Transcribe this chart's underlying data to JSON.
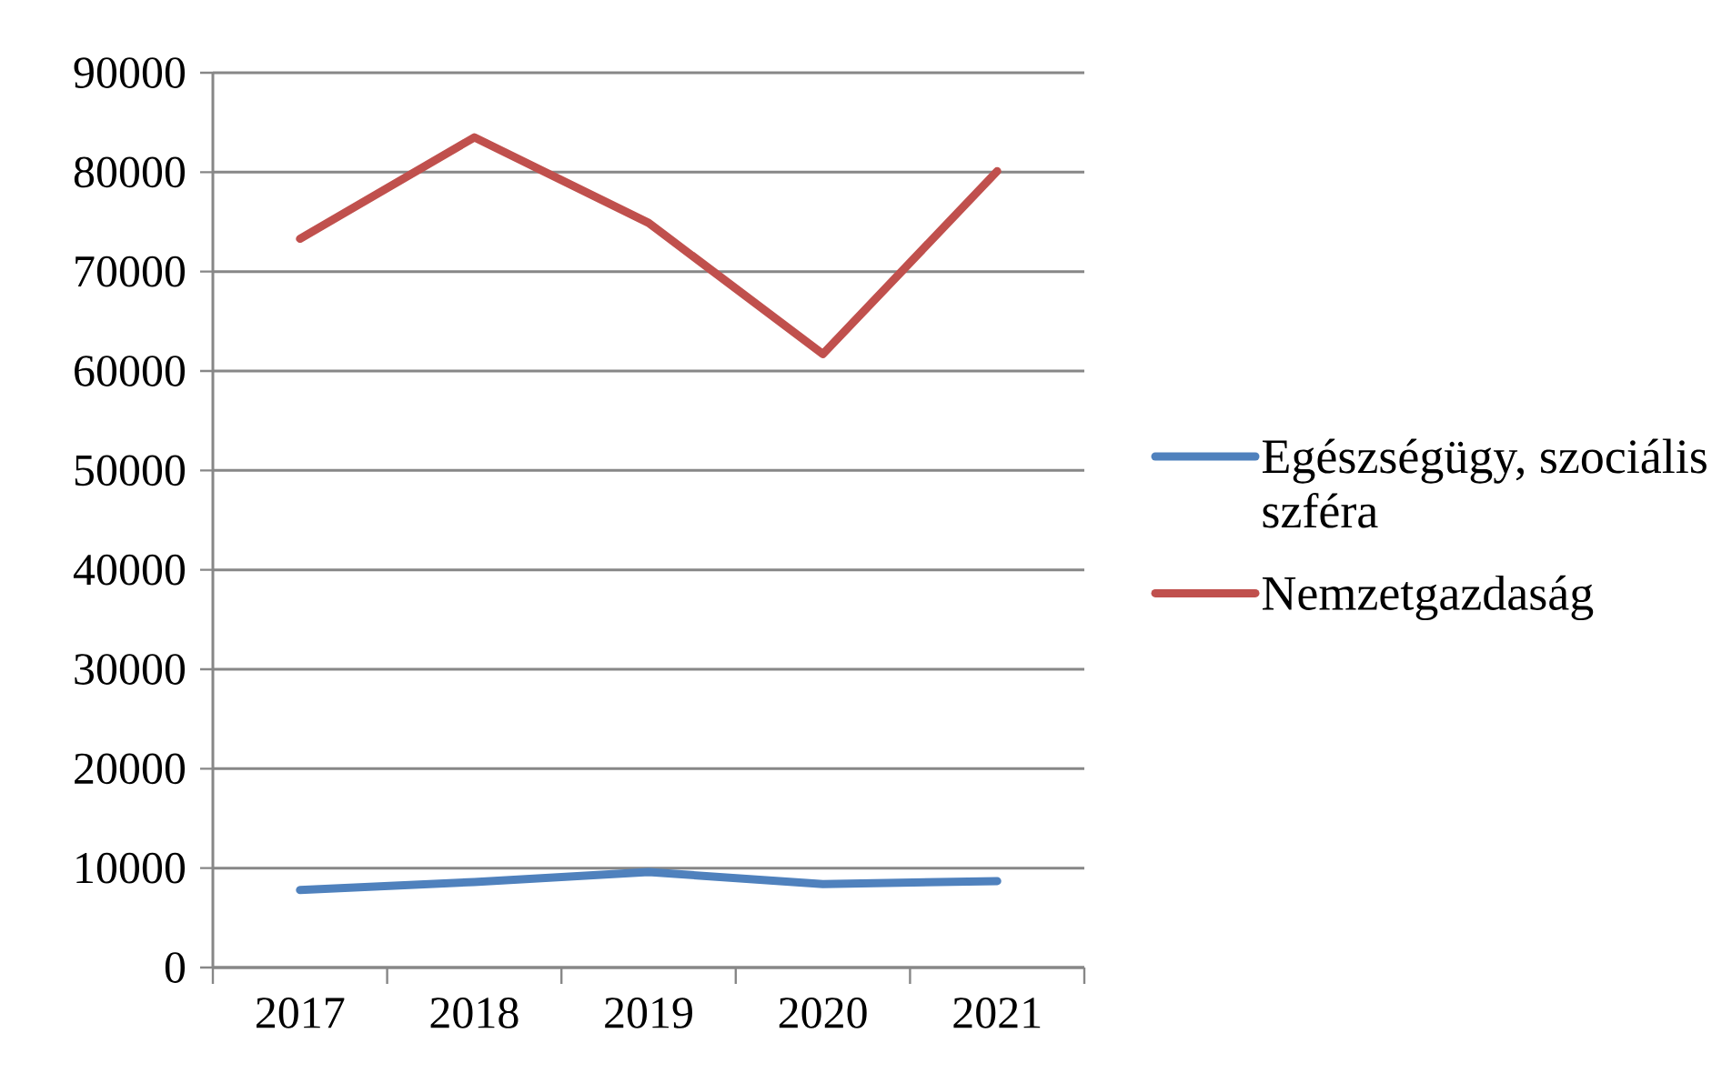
{
  "chart_data": {
    "type": "line",
    "categories": [
      "2017",
      "2018",
      "2019",
      "2020",
      "2021"
    ],
    "series": [
      {
        "name": "Egészségügy, szociális szféra",
        "color": "#4f81bd",
        "values": [
          7800,
          8600,
          9600,
          8400,
          8700
        ]
      },
      {
        "name": "Nemzetgazdaság",
        "color": "#c0504d",
        "values": [
          73300,
          83500,
          74900,
          61700,
          80100
        ]
      }
    ],
    "ylim": [
      0,
      90000
    ],
    "yticks": [
      0,
      10000,
      20000,
      30000,
      40000,
      50000,
      60000,
      70000,
      80000,
      90000
    ],
    "grid": "y",
    "legend": "right"
  }
}
